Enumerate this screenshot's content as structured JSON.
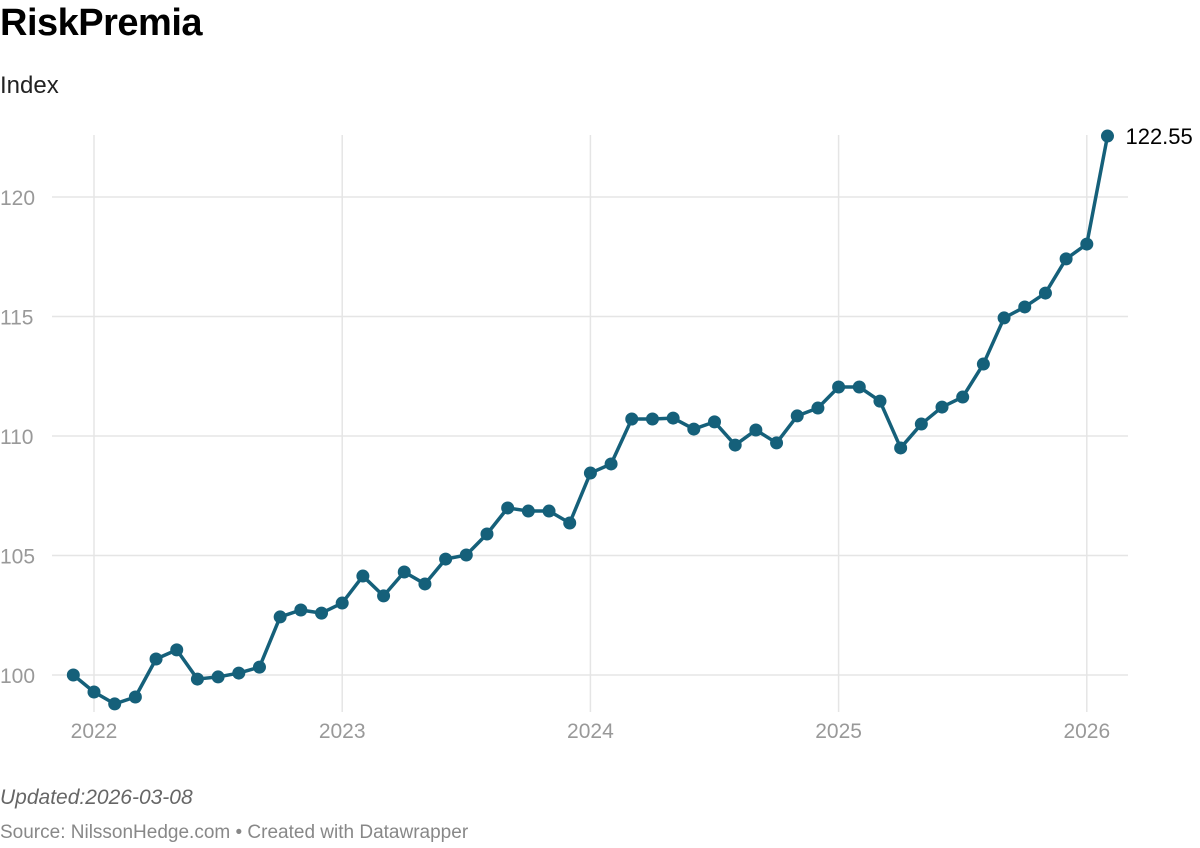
{
  "header": {
    "title": "RiskPremia",
    "subtitle": "Index"
  },
  "footer": {
    "updated": "Updated:2026-03-08",
    "source": "Source: NilssonHedge.com • Created with Datawrapper"
  },
  "colors": {
    "line": "#15607a",
    "grid": "#e5e5e5",
    "tick_label": "#999999",
    "value_label": "#000000"
  },
  "chart_data": {
    "type": "line",
    "title": "RiskPremia",
    "subtitle": "Index",
    "xlabel": "",
    "ylabel": "",
    "grid": true,
    "markers": true,
    "yticks": [
      100,
      105,
      110,
      115,
      120
    ],
    "xticks": [
      "2022",
      "2023",
      "2024",
      "2025",
      "2026"
    ],
    "ylim": [
      98.5,
      122.55
    ],
    "end_label": "122.55",
    "x": [
      "2021-12",
      "2022-01",
      "2022-02",
      "2022-03",
      "2022-04",
      "2022-05",
      "2022-06",
      "2022-07",
      "2022-08",
      "2022-09",
      "2022-10",
      "2022-11",
      "2022-12",
      "2023-01",
      "2023-02",
      "2023-03",
      "2023-04",
      "2023-05",
      "2023-06",
      "2023-07",
      "2023-08",
      "2023-09",
      "2023-10",
      "2023-11",
      "2023-12",
      "2024-01",
      "2024-02",
      "2024-03",
      "2024-04",
      "2024-05",
      "2024-06",
      "2024-07",
      "2024-08",
      "2024-09",
      "2024-10",
      "2024-11",
      "2024-12",
      "2025-01",
      "2025-02",
      "2025-03",
      "2025-04",
      "2025-05",
      "2025-06",
      "2025-07",
      "2025-08",
      "2025-09",
      "2025-10",
      "2025-11",
      "2025-12",
      "2026-01",
      "2026-02"
    ],
    "values": [
      100.0,
      99.29,
      98.79,
      99.08,
      100.67,
      101.05,
      99.83,
      99.92,
      100.08,
      100.33,
      102.43,
      102.72,
      102.59,
      103.01,
      104.14,
      103.31,
      104.31,
      103.81,
      104.85,
      105.02,
      105.9,
      106.99,
      106.86,
      106.86,
      106.36,
      108.45,
      108.83,
      110.71,
      110.71,
      110.75,
      110.29,
      110.59,
      109.62,
      110.25,
      109.71,
      110.84,
      111.17,
      112.05,
      112.05,
      111.46,
      109.5,
      110.5,
      111.21,
      111.63,
      113.01,
      114.94,
      115.4,
      115.98,
      117.41,
      118.03,
      122.55
    ]
  }
}
